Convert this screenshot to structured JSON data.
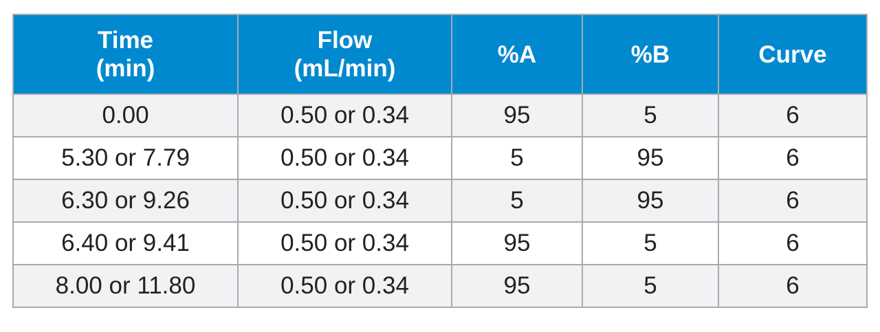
{
  "table": {
    "headers": [
      {
        "line1": "Time",
        "line2": "(min)"
      },
      {
        "line1": "Flow",
        "line2": "(mL/min)"
      },
      {
        "line1": "%A",
        "line2": ""
      },
      {
        "line1": "%B",
        "line2": ""
      },
      {
        "line1": "Curve",
        "line2": ""
      }
    ],
    "rows": [
      [
        "0.00",
        "0.50 or 0.34",
        "95",
        "5",
        "6"
      ],
      [
        "5.30 or 7.79",
        "0.50 or 0.34",
        "5",
        "95",
        "6"
      ],
      [
        "6.30 or 9.26",
        "0.50 or 0.34",
        "5",
        "95",
        "6"
      ],
      [
        "6.40 or 9.41",
        "0.50 or 0.34",
        "95",
        "5",
        "6"
      ],
      [
        "8.00 or 11.80",
        "0.50 or 0.34",
        "95",
        "5",
        "6"
      ]
    ]
  },
  "colors": {
    "header_bg": "#0089cf",
    "header_text": "#ffffff",
    "stripe_bg": "#f2f2f4",
    "border": "#a9aaae"
  }
}
